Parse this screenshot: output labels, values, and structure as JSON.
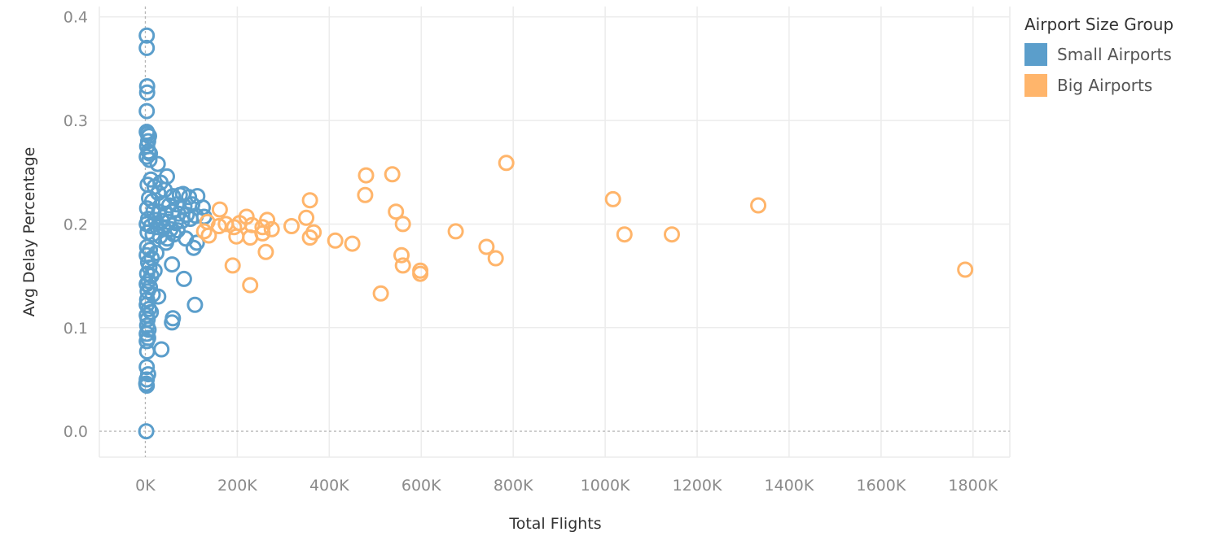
{
  "chart_data": {
    "type": "scatter",
    "title": "",
    "xlabel": "Total Flights",
    "ylabel": "Avg Delay Percentage",
    "xlim": [
      -100000,
      1880000
    ],
    "ylim": [
      -0.025,
      0.41
    ],
    "x_ticks": [
      0,
      200000,
      400000,
      600000,
      800000,
      1000000,
      1200000,
      1400000,
      1600000,
      1800000
    ],
    "x_tick_labels": [
      "0K",
      "200K",
      "400K",
      "600K",
      "800K",
      "1000K",
      "1200K",
      "1400K",
      "1600K",
      "1800K"
    ],
    "y_ticks": [
      0.0,
      0.1,
      0.2,
      0.3,
      0.4
    ],
    "y_tick_labels": [
      "0.0",
      "0.1",
      "0.2",
      "0.3",
      "0.4"
    ],
    "grid": true,
    "legend": {
      "title": "Airport Size Group",
      "position": "top-right"
    },
    "series": [
      {
        "name": "Small Airports",
        "color": "#5b9ecb",
        "marker": "hollow-circle",
        "points": [
          [
            3000,
            0.382
          ],
          [
            3000,
            0.37
          ],
          [
            4000,
            0.333
          ],
          [
            4000,
            0.327
          ],
          [
            3000,
            0.309
          ],
          [
            3000,
            0.289
          ],
          [
            5000,
            0.287
          ],
          [
            8000,
            0.285
          ],
          [
            6000,
            0.28
          ],
          [
            4000,
            0.275
          ],
          [
            7000,
            0.27
          ],
          [
            10000,
            0.268
          ],
          [
            3000,
            0.265
          ],
          [
            9000,
            0.262
          ],
          [
            27000,
            0.258
          ],
          [
            47000,
            0.246
          ],
          [
            12000,
            0.243
          ],
          [
            33000,
            0.24
          ],
          [
            5000,
            0.238
          ],
          [
            20000,
            0.236
          ],
          [
            42000,
            0.233
          ],
          [
            28000,
            0.23
          ],
          [
            60000,
            0.227
          ],
          [
            75000,
            0.228
          ],
          [
            82000,
            0.229
          ],
          [
            95000,
            0.226
          ],
          [
            113000,
            0.227
          ],
          [
            8000,
            0.225
          ],
          [
            15000,
            0.222
          ],
          [
            38000,
            0.22
          ],
          [
            52000,
            0.218
          ],
          [
            68000,
            0.219
          ],
          [
            85000,
            0.217
          ],
          [
            102000,
            0.219
          ],
          [
            125000,
            0.216
          ],
          [
            4000,
            0.215
          ],
          [
            18000,
            0.213
          ],
          [
            30000,
            0.212
          ],
          [
            44000,
            0.21
          ],
          [
            58000,
            0.212
          ],
          [
            72000,
            0.21
          ],
          [
            90000,
            0.209
          ],
          [
            110000,
            0.208
          ],
          [
            128000,
            0.207
          ],
          [
            6000,
            0.205
          ],
          [
            22000,
            0.204
          ],
          [
            36000,
            0.203
          ],
          [
            50000,
            0.202
          ],
          [
            66000,
            0.201
          ],
          [
            80000,
            0.203
          ],
          [
            98000,
            0.205
          ],
          [
            3000,
            0.2
          ],
          [
            12000,
            0.198
          ],
          [
            26000,
            0.197
          ],
          [
            40000,
            0.196
          ],
          [
            55000,
            0.195
          ],
          [
            70000,
            0.194
          ],
          [
            5000,
            0.192
          ],
          [
            16000,
            0.19
          ],
          [
            32000,
            0.188
          ],
          [
            48000,
            0.186
          ],
          [
            62000,
            0.19
          ],
          [
            88000,
            0.186
          ],
          [
            45000,
            0.182
          ],
          [
            112000,
            0.182
          ],
          [
            105000,
            0.177
          ],
          [
            4000,
            0.178
          ],
          [
            10000,
            0.175
          ],
          [
            24000,
            0.172
          ],
          [
            3000,
            0.17
          ],
          [
            14000,
            0.167
          ],
          [
            6000,
            0.163
          ],
          [
            58000,
            0.161
          ],
          [
            9000,
            0.158
          ],
          [
            20000,
            0.155
          ],
          [
            4000,
            0.152
          ],
          [
            13000,
            0.15
          ],
          [
            84000,
            0.147
          ],
          [
            7000,
            0.145
          ],
          [
            3000,
            0.142
          ],
          [
            10000,
            0.139
          ],
          [
            5000,
            0.135
          ],
          [
            16000,
            0.132
          ],
          [
            28000,
            0.13
          ],
          [
            4000,
            0.127
          ],
          [
            108000,
            0.122
          ],
          [
            3000,
            0.122
          ],
          [
            8000,
            0.118
          ],
          [
            12000,
            0.115
          ],
          [
            3000,
            0.112
          ],
          [
            5000,
            0.108
          ],
          [
            60000,
            0.109
          ],
          [
            58000,
            0.105
          ],
          [
            4000,
            0.102
          ],
          [
            7000,
            0.098
          ],
          [
            3000,
            0.094
          ],
          [
            6000,
            0.09
          ],
          [
            3000,
            0.087
          ],
          [
            35000,
            0.079
          ],
          [
            4000,
            0.077
          ],
          [
            3000,
            0.062
          ],
          [
            6000,
            0.055
          ],
          [
            3000,
            0.05
          ],
          [
            2000,
            0.046
          ],
          [
            3000,
            0.044
          ],
          [
            2000,
            0.0
          ]
        ]
      },
      {
        "name": "Big Airports",
        "color": "#ffb56b",
        "marker": "hollow-circle",
        "points": [
          [
            785000,
            0.259
          ],
          [
            480000,
            0.247
          ],
          [
            537000,
            0.248
          ],
          [
            478000,
            0.228
          ],
          [
            1017000,
            0.224
          ],
          [
            1333000,
            0.218
          ],
          [
            358000,
            0.223
          ],
          [
            162000,
            0.214
          ],
          [
            545000,
            0.212
          ],
          [
            220000,
            0.207
          ],
          [
            265000,
            0.204
          ],
          [
            350000,
            0.206
          ],
          [
            135000,
            0.202
          ],
          [
            175000,
            0.2
          ],
          [
            205000,
            0.201
          ],
          [
            232000,
            0.199
          ],
          [
            255000,
            0.197
          ],
          [
            560000,
            0.2
          ],
          [
            318000,
            0.198
          ],
          [
            160000,
            0.198
          ],
          [
            193000,
            0.197
          ],
          [
            275000,
            0.195
          ],
          [
            128000,
            0.193
          ],
          [
            366000,
            0.192
          ],
          [
            675000,
            0.193
          ],
          [
            255000,
            0.191
          ],
          [
            138000,
            0.189
          ],
          [
            198000,
            0.188
          ],
          [
            228000,
            0.187
          ],
          [
            358000,
            0.187
          ],
          [
            1042000,
            0.19
          ],
          [
            1145000,
            0.19
          ],
          [
            413000,
            0.184
          ],
          [
            450000,
            0.181
          ],
          [
            742000,
            0.178
          ],
          [
            262000,
            0.173
          ],
          [
            557000,
            0.17
          ],
          [
            762000,
            0.167
          ],
          [
            190000,
            0.16
          ],
          [
            560000,
            0.16
          ],
          [
            598000,
            0.155
          ],
          [
            598000,
            0.152
          ],
          [
            1783000,
            0.156
          ],
          [
            228000,
            0.141
          ],
          [
            512000,
            0.133
          ]
        ]
      }
    ]
  }
}
